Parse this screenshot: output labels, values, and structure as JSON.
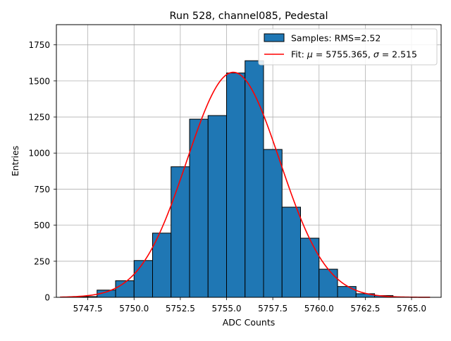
{
  "chart_data": {
    "type": "bar",
    "title": "Run 528, channel085, Pedestal",
    "xlabel": "ADC Counts",
    "ylabel": "Entries",
    "xlim": [
      5745.8,
      5766.6
    ],
    "ylim": [
      0,
      1890
    ],
    "xticks": [
      {
        "value": 5747.5,
        "label": "5747.5"
      },
      {
        "value": 5750.0,
        "label": "5750.0"
      },
      {
        "value": 5752.5,
        "label": "5752.5"
      },
      {
        "value": 5755.0,
        "label": "5755.0"
      },
      {
        "value": 5757.5,
        "label": "5757.5"
      },
      {
        "value": 5760.0,
        "label": "5760.0"
      },
      {
        "value": 5762.5,
        "label": "5762.5"
      },
      {
        "value": 5765.0,
        "label": "5765.0"
      }
    ],
    "yticks": [
      {
        "value": 0,
        "label": "0"
      },
      {
        "value": 250,
        "label": "250"
      },
      {
        "value": 500,
        "label": "500"
      },
      {
        "value": 750,
        "label": "750"
      },
      {
        "value": 1000,
        "label": "1000"
      },
      {
        "value": 1250,
        "label": "1250"
      },
      {
        "value": 1500,
        "label": "1500"
      },
      {
        "value": 1750,
        "label": "1750"
      }
    ],
    "grid": true,
    "legend_position": "top-right",
    "histogram": {
      "name": "Samples: RMS=2.52",
      "color": "#1f77b4",
      "edgecolor": "#000000",
      "bins": [
        {
          "x0": 5747.0,
          "x1": 5748.0,
          "count": 5
        },
        {
          "x0": 5748.0,
          "x1": 5749.0,
          "count": 50
        },
        {
          "x0": 5749.0,
          "x1": 5750.0,
          "count": 115
        },
        {
          "x0": 5750.0,
          "x1": 5751.0,
          "count": 255
        },
        {
          "x0": 5751.0,
          "x1": 5752.0,
          "count": 445
        },
        {
          "x0": 5752.0,
          "x1": 5753.0,
          "count": 905
        },
        {
          "x0": 5753.0,
          "x1": 5754.0,
          "count": 1235
        },
        {
          "x0": 5754.0,
          "x1": 5755.0,
          "count": 1260
        },
        {
          "x0": 5755.0,
          "x1": 5756.0,
          "count": 1555
        },
        {
          "x0": 5756.0,
          "x1": 5757.0,
          "count": 1640
        },
        {
          "x0": 5757.0,
          "x1": 5758.0,
          "count": 1025
        },
        {
          "x0": 5758.0,
          "x1": 5759.0,
          "count": 625
        },
        {
          "x0": 5759.0,
          "x1": 5760.0,
          "count": 410
        },
        {
          "x0": 5760.0,
          "x1": 5761.0,
          "count": 195
        },
        {
          "x0": 5761.0,
          "x1": 5762.0,
          "count": 75
        },
        {
          "x0": 5762.0,
          "x1": 5763.0,
          "count": 25
        },
        {
          "x0": 5763.0,
          "x1": 5764.0,
          "count": 12
        }
      ]
    },
    "fit": {
      "name_prefix": "Fit: ",
      "name_mu_symbol": "μ",
      "name_mid": " = 5755.365, ",
      "name_sigma_symbol": "σ",
      "name_suffix": " = 2.515",
      "color": "#ff0000",
      "mu": 5755.365,
      "sigma": 2.515,
      "amplitude": 1560,
      "x_range": [
        5746.0,
        5766.0
      ]
    }
  }
}
